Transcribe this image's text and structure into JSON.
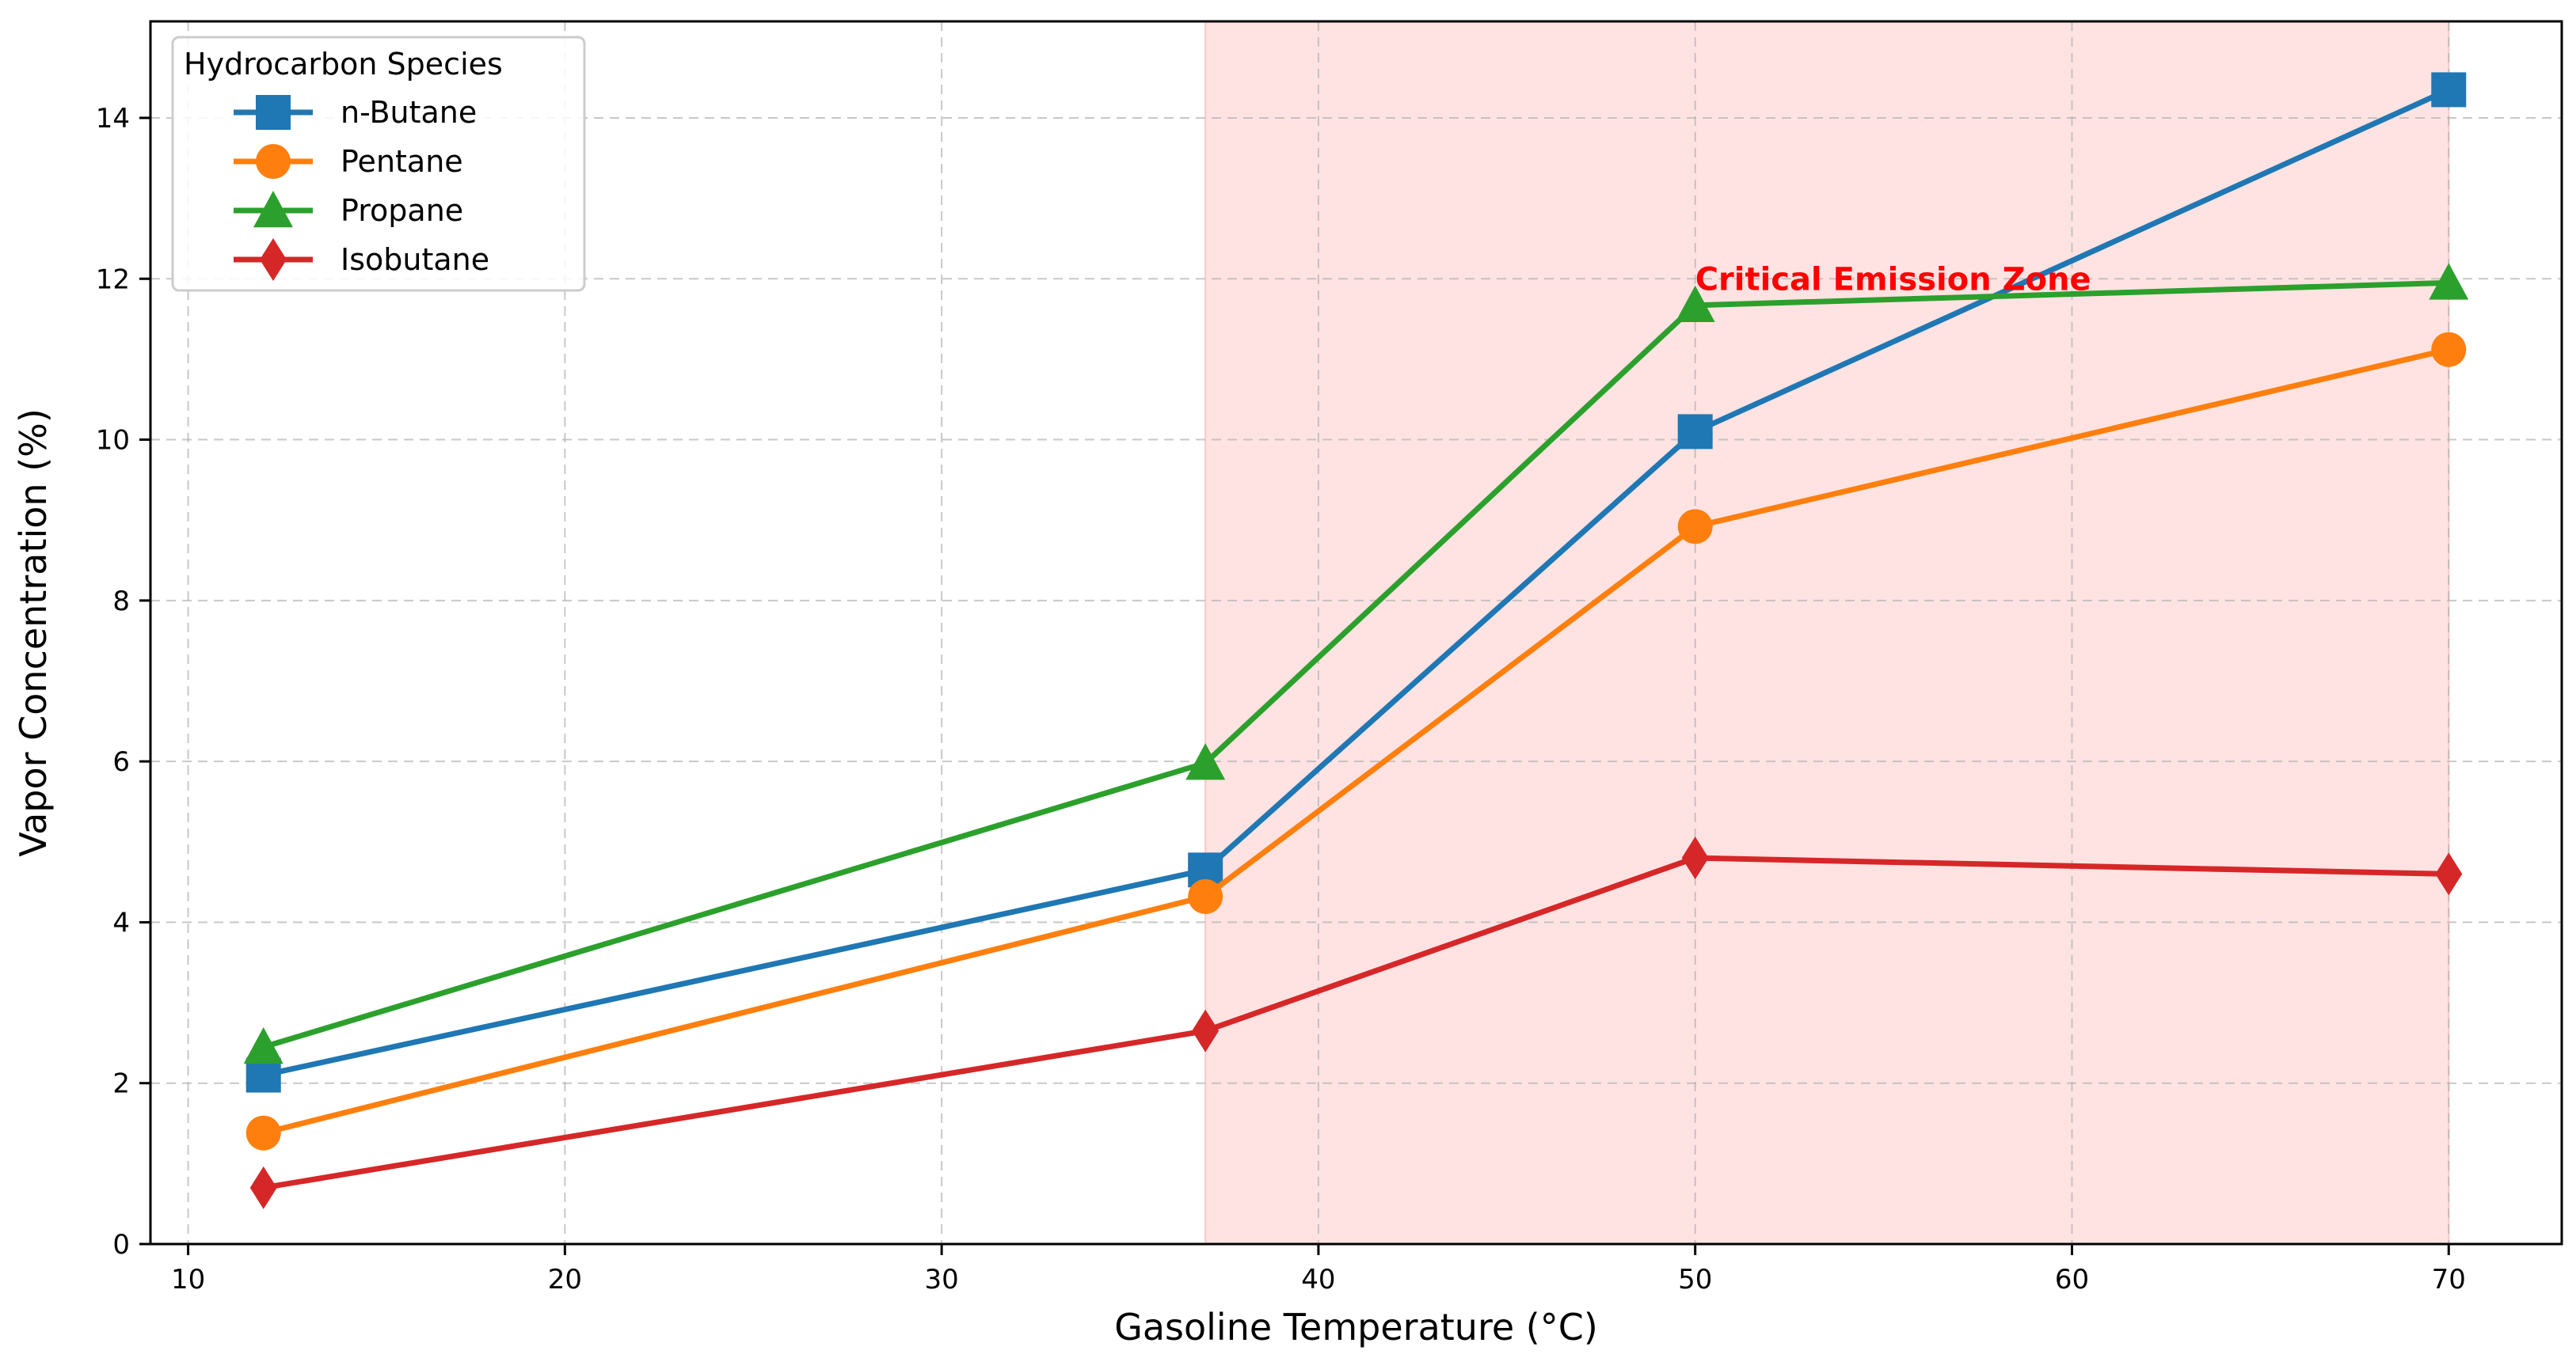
{
  "chart_data": {
    "type": "line",
    "xlabel": "Gasoline Temperature (°C)",
    "ylabel": "Vapor Concentration (%)",
    "xlim": [
      9,
      73
    ],
    "ylim": [
      0,
      15.2
    ],
    "x_ticks": [
      10,
      20,
      30,
      40,
      50,
      60,
      70
    ],
    "y_ticks": [
      0,
      2,
      4,
      6,
      8,
      10,
      12,
      14
    ],
    "grid": true,
    "legend": {
      "title": "Hydrocarbon Species",
      "placement": "top-left"
    },
    "x": [
      12,
      37,
      50,
      70
    ],
    "series": [
      {
        "name": "n-Butane",
        "values": [
          2.1,
          4.65,
          10.1,
          14.35
        ],
        "color": "#1f77b4",
        "marker": "square"
      },
      {
        "name": "Pentane",
        "values": [
          1.38,
          4.32,
          8.92,
          11.12
        ],
        "color": "#ff7f0e",
        "marker": "circle"
      },
      {
        "name": "Propane",
        "values": [
          2.45,
          5.98,
          11.67,
          11.95
        ],
        "color": "#2ca02c",
        "marker": "triangle"
      },
      {
        "name": "Isobutane",
        "values": [
          0.7,
          2.65,
          4.8,
          4.6
        ],
        "color": "#d62728",
        "marker": "diamond"
      }
    ],
    "shaded_region": {
      "x_start": 37,
      "x_end": 70,
      "color": "#ffe3e3"
    },
    "annotations": [
      {
        "text": "Critical Emission Zone",
        "x": 50,
        "y": 12.0,
        "color": "#ff0000"
      }
    ]
  }
}
